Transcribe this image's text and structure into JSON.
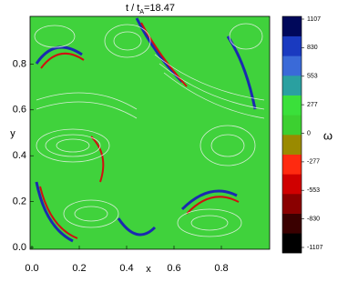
{
  "chart_data": {
    "type": "heatmap",
    "title": {
      "text": "t / t",
      "subscript": "A",
      "suffix": "=18.47"
    },
    "xlabel": "x",
    "ylabel": "y",
    "xlim": [
      0,
      1
    ],
    "ylim": [
      0,
      1
    ],
    "xticks": [
      {
        "value": 0,
        "label": "0.0"
      },
      0.2,
      0.4,
      0.6,
      0.8
    ],
    "yticks": [
      {
        "value": 0,
        "label": "0.0"
      },
      0.2,
      0.4,
      0.6,
      0.8
    ],
    "colorbar": {
      "label": "ω",
      "clim": [
        -1107,
        1107
      ],
      "ticks": [
        -1107,
        -830,
        -553,
        -277,
        0,
        277,
        553,
        830,
        1107
      ],
      "colors": [
        "#000000",
        "#3a0000",
        "#8a0000",
        "#d00000",
        "#ff2a10",
        "#9a8a00",
        "#3cd030",
        "#3ae03a",
        "#2aa0a0",
        "#3a6ad8",
        "#1a3ac0",
        "#00085a"
      ]
    }
  }
}
